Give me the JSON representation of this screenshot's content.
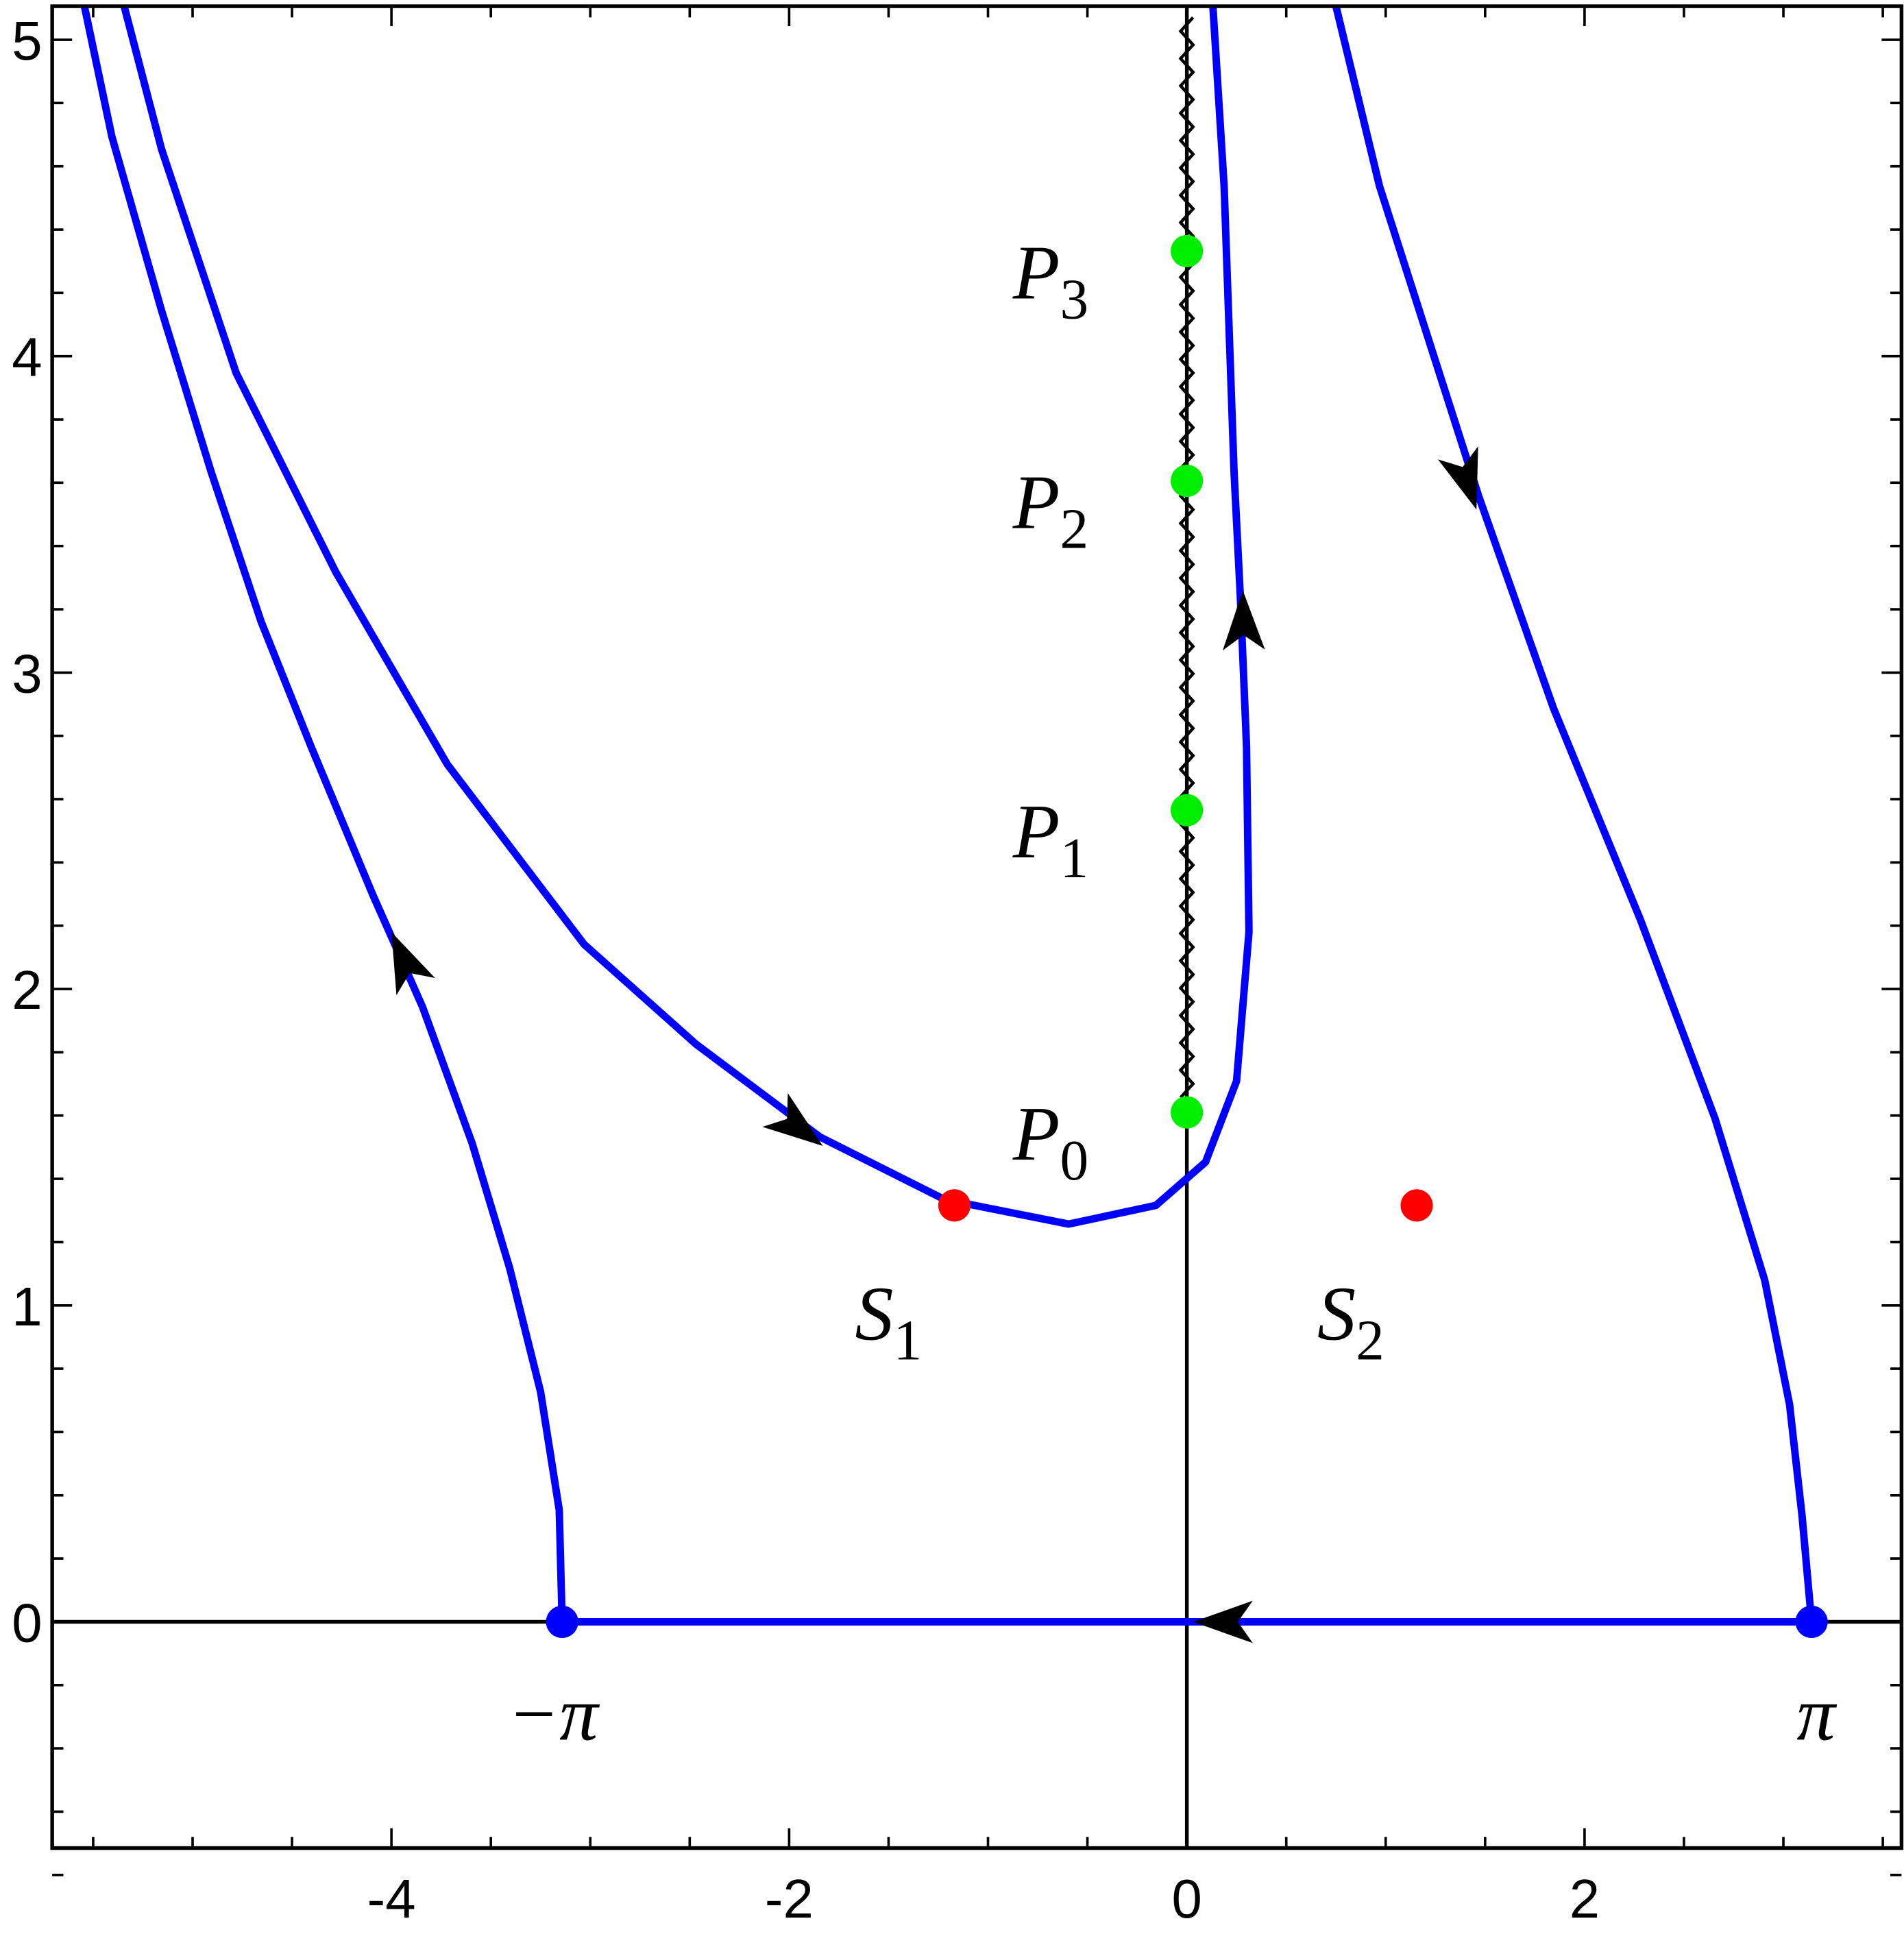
{
  "chart_data": {
    "type": "line",
    "xlim": [
      -5.706,
      3.594
    ],
    "ylim": [
      -0.715,
      5.106
    ],
    "xticks": [
      -4,
      -2,
      0,
      2
    ],
    "yticks": [
      0,
      1,
      2,
      3,
      4,
      5
    ],
    "xminor": 4,
    "yminor": 5,
    "series": [
      {
        "color": "#0000ff",
        "x": [
          -3.1416,
          -3.156,
          -3.25,
          -3.406,
          -3.594,
          -3.844,
          -4.094,
          -4.406,
          -4.656,
          -4.906,
          -5.156,
          -5.406,
          -5.544
        ],
        "values": [
          0,
          0.353,
          0.727,
          1.119,
          1.512,
          1.944,
          2.298,
          2.769,
          3.162,
          3.633,
          4.144,
          4.694,
          5.106
        ]
      },
      {
        "color": "#0000ff",
        "x": [
          -5.344,
          -5.156,
          -4.781,
          -4.281,
          -3.719,
          -3.031,
          -2.469,
          -1.844,
          -1.219,
          -0.594,
          -0.156,
          0.094,
          0.25,
          0.3125,
          0.3,
          0.269,
          0.2375,
          0.1875,
          0.131
        ],
        "values": [
          5.106,
          4.654,
          3.947,
          3.319,
          2.71,
          2.141,
          1.826,
          1.532,
          1.335,
          1.257,
          1.316,
          1.453,
          1.709,
          2.18,
          2.769,
          3.24,
          3.633,
          4.537,
          5.106
        ]
      },
      {
        "color": "#0000ff",
        "x": [
          0.75,
          0.969,
          1.469,
          1.844,
          2.281,
          2.656,
          2.906,
          3.031,
          3.094,
          3.1416
        ],
        "values": [
          5.106,
          4.537,
          3.555,
          2.887,
          2.219,
          1.591,
          1.08,
          0.687,
          0.334,
          0
        ]
      },
      {
        "color": "#0000ff",
        "x": [
          3.1416,
          -3.1416
        ],
        "values": [
          0,
          0
        ]
      }
    ],
    "points": [
      {
        "label": "S",
        "sub": "1",
        "x": -1.169,
        "y": 1.316,
        "color": "#ff0000"
      },
      {
        "label": "S",
        "sub": "2",
        "x": 1.156,
        "y": 1.316,
        "color": "#ff0000"
      },
      {
        "label": "P",
        "sub": "0",
        "x": 0,
        "y": 1.61,
        "color": "#00ee00"
      },
      {
        "label": "P",
        "sub": "1",
        "x": 0,
        "y": 2.565,
        "color": "#00ee00"
      },
      {
        "label": "P",
        "sub": "2",
        "x": 0,
        "y": 3.606,
        "color": "#00ee00"
      },
      {
        "label": "P",
        "sub": "3",
        "x": 0,
        "y": 4.332,
        "color": "#00ee00"
      },
      {
        "label": "−π",
        "x": -3.1416,
        "y": 0,
        "color": "#0000ff"
      },
      {
        "label": "π",
        "x": 3.1416,
        "y": 0,
        "color": "#0000ff"
      }
    ]
  }
}
